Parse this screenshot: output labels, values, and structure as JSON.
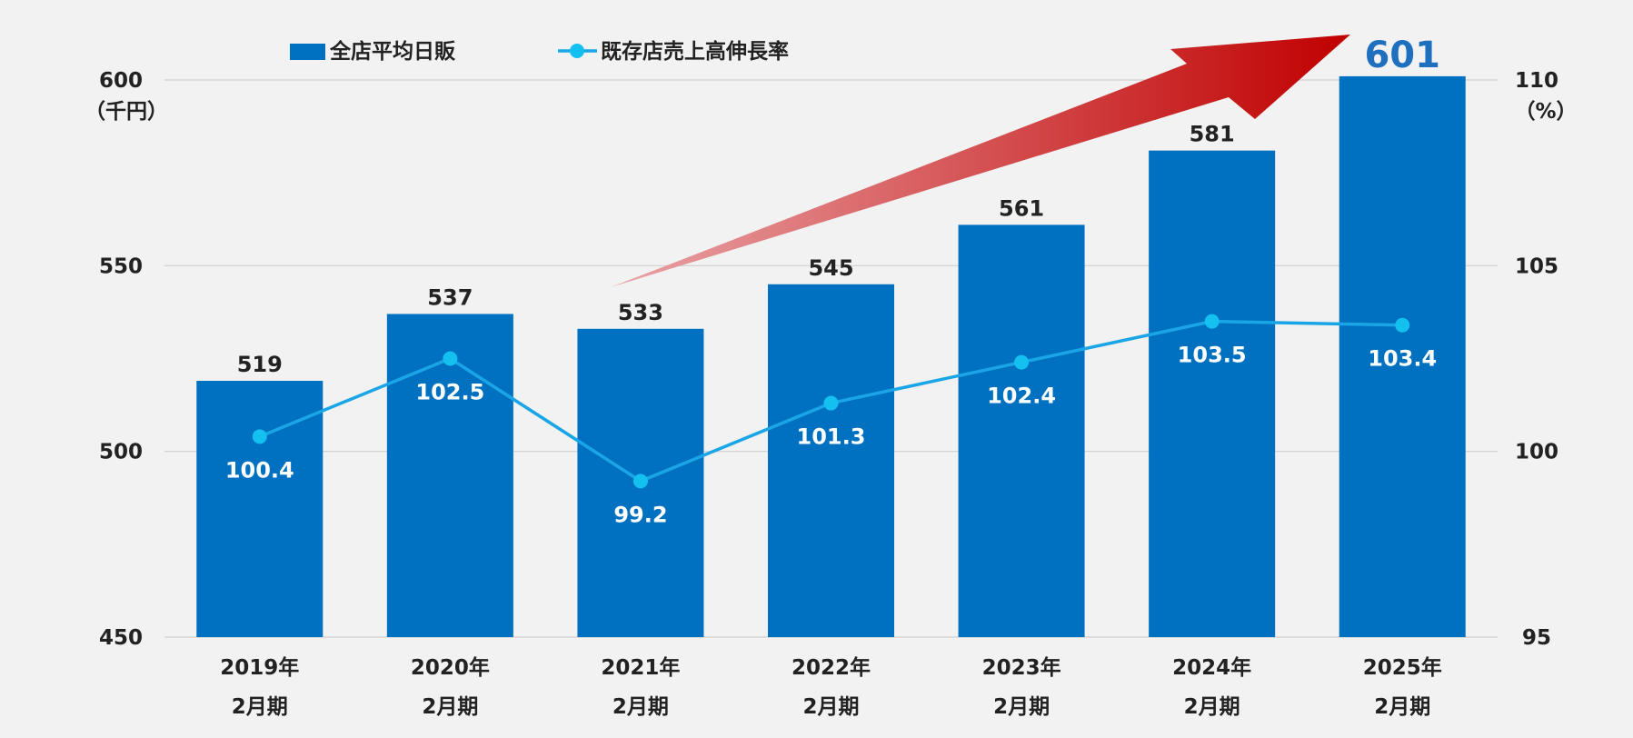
{
  "chart_data": {
    "type": "bar",
    "categories": [
      [
        "2019年",
        "2月期"
      ],
      [
        "2020年",
        "2月期"
      ],
      [
        "2021年",
        "2月期"
      ],
      [
        "2022年",
        "2月期"
      ],
      [
        "2023年",
        "2月期"
      ],
      [
        "2024年",
        "2月期"
      ],
      [
        "2025年",
        "2月期"
      ]
    ],
    "series": [
      {
        "name": "全店平均日販",
        "type": "bar",
        "axis": "left",
        "values": [
          519,
          537,
          533,
          545,
          561,
          581,
          601
        ],
        "labels": [
          "519",
          "537",
          "533",
          "545",
          "561",
          "581",
          "601"
        ]
      },
      {
        "name": "既存店売上高伸長率",
        "type": "line",
        "axis": "right",
        "values": [
          100.4,
          102.5,
          99.2,
          101.3,
          102.4,
          103.5,
          103.4
        ],
        "labels": [
          "100.4",
          "102.5",
          "99.2",
          "101.3",
          "102.4",
          "103.5",
          "103.4"
        ]
      }
    ],
    "left_axis": {
      "range": [
        450,
        600
      ],
      "ticks": [
        "450",
        "500",
        "550",
        "600"
      ],
      "unit": "（千円）"
    },
    "right_axis": {
      "range": [
        95,
        110
      ],
      "ticks": [
        "95",
        "100",
        "105",
        "110"
      ],
      "unit": "（%）"
    },
    "grid": true,
    "legend": "top-left",
    "highlight": {
      "label": "601",
      "note": "large upward red arrow over bars pointing to final bar"
    }
  },
  "colors": {
    "bar": "#0070c0",
    "line": "#1aa6e6",
    "marker": "#13c0ef",
    "highlight_label": "#1f6fbf",
    "arrow_start": "#e9a4a7",
    "arrow_end": "#c00000",
    "grid": "#d0d0d0",
    "background": "#f2f2f2"
  }
}
